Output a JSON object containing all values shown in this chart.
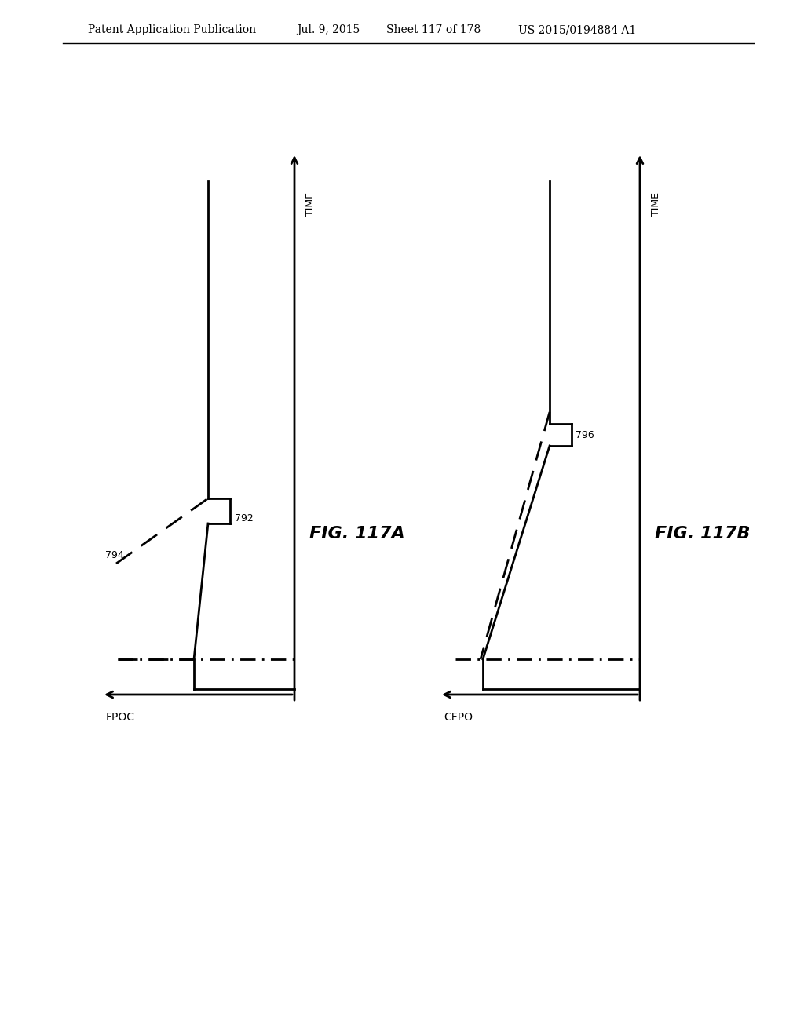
{
  "background_color": "#ffffff",
  "header_text": "Patent Application Publication",
  "header_date": "Jul. 9, 2015",
  "header_sheet": "Sheet 117 of 178",
  "header_patent": "US 2015/0194884 A1",
  "fig_a_label": "FIG. 117A",
  "fig_b_label": "FIG. 117B",
  "label_792": "792",
  "label_794": "794",
  "label_796": "796",
  "xaxis_a": "FPOC",
  "xaxis_b": "CFPO",
  "yaxis_label": "TIME",
  "line_color": "#000000"
}
